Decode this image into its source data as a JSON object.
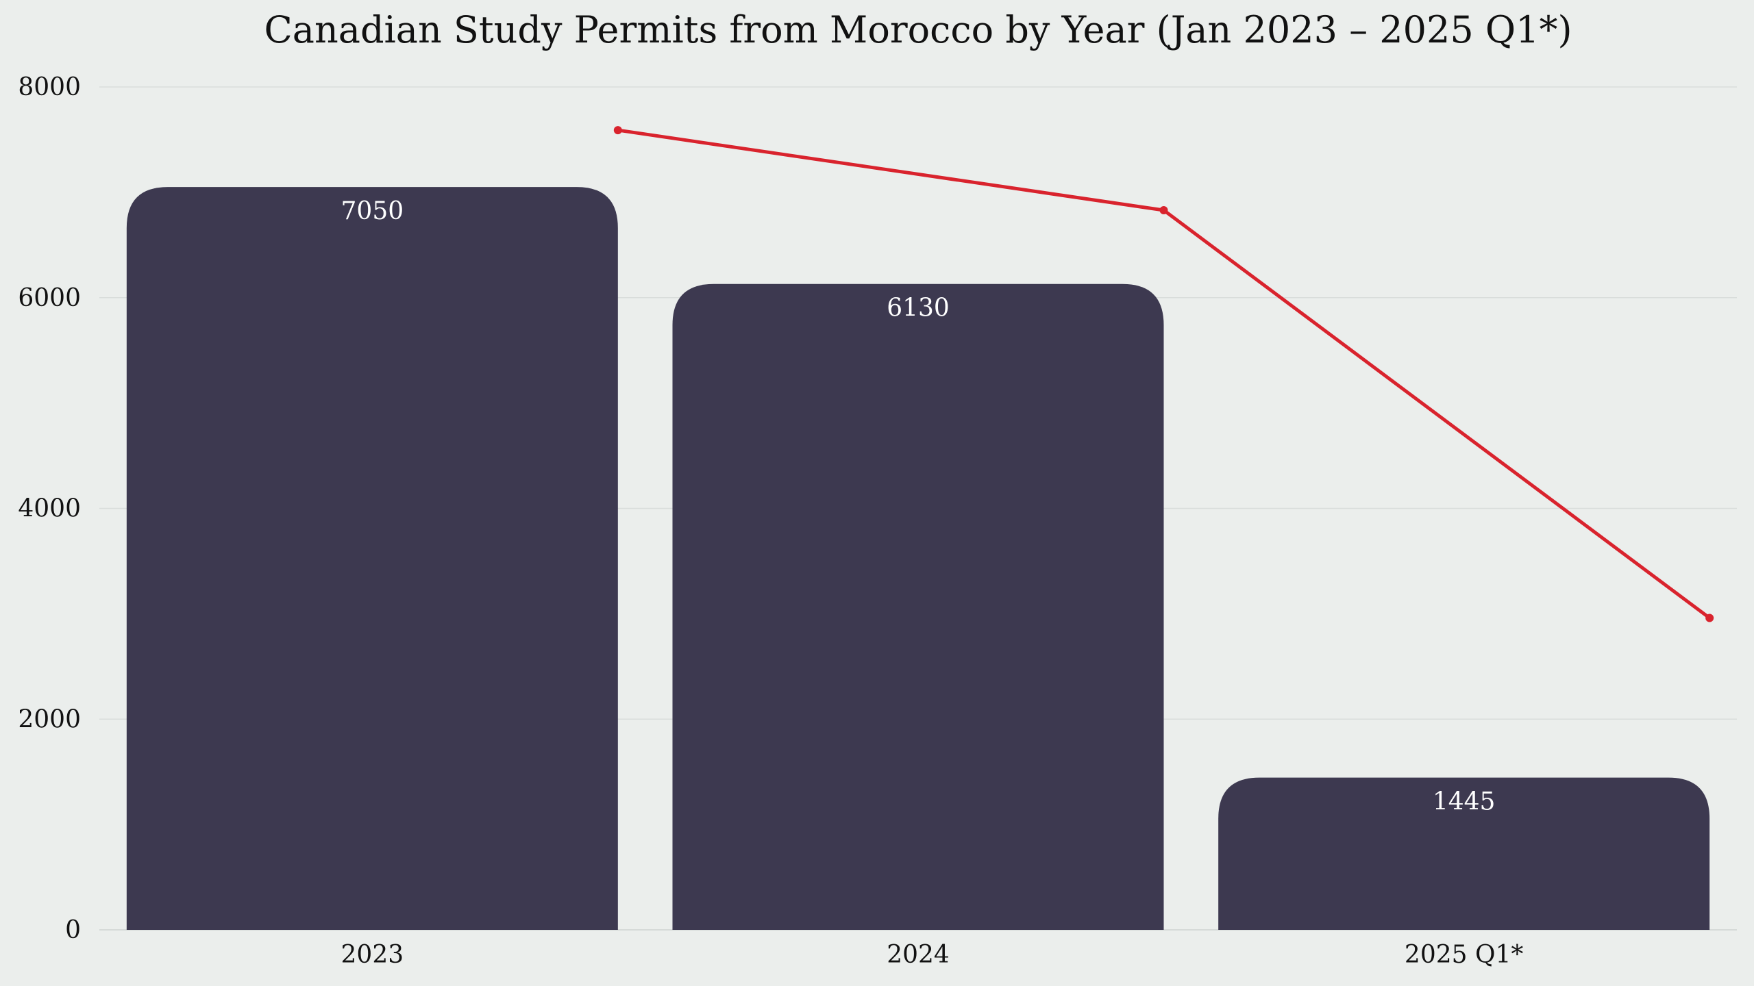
{
  "chart_data": {
    "type": "bar",
    "title": "Canadian Study Permits from Morocco by Year (Jan 2023 – 2025 Q1*)",
    "xlabel": "",
    "ylabel": "",
    "categories": [
      "2023",
      "2024",
      "2025 Q1*"
    ],
    "series": [
      {
        "type": "bar",
        "values": [
          7050,
          6130,
          1445
        ],
        "color": "#3d3950"
      },
      {
        "type": "line",
        "values": [
          7590,
          6830,
          2960
        ],
        "color": "#d9232d"
      }
    ],
    "ylim": [
      0,
      8000
    ],
    "yticks": [
      "0",
      "2000",
      "4000",
      "6000",
      "8000"
    ],
    "bar_labels": [
      "7050",
      "6130",
      "1445"
    ],
    "grid": true,
    "legend": "none"
  }
}
